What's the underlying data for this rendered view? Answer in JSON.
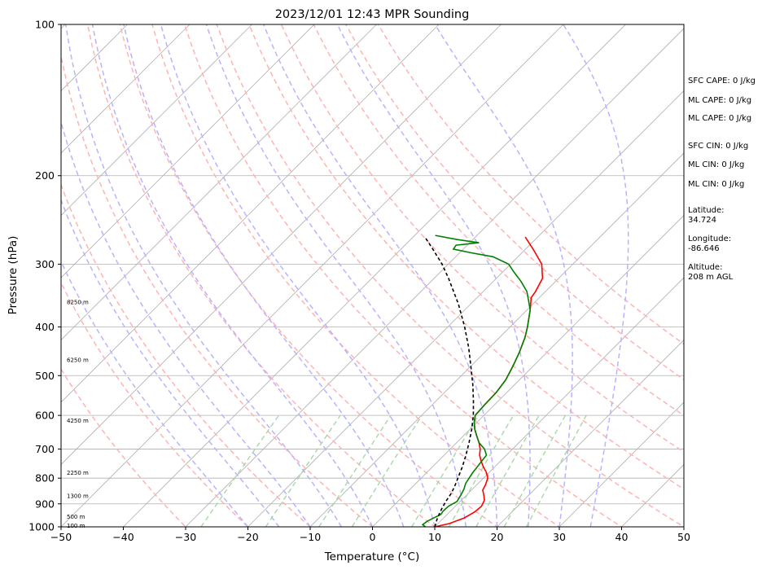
{
  "chart_data": {
    "type": "line",
    "title": "2023/12/01 12:43 MPR Sounding",
    "xlabel": "Temperature (°C)",
    "ylabel": "Pressure (hPa)",
    "xlim": [
      -50,
      50
    ],
    "ylim": [
      1000,
      100
    ],
    "y_scale": "log",
    "x_ticks": [
      "−50",
      "−40",
      "−30",
      "−20",
      "−10",
      "0",
      "10",
      "20",
      "30",
      "40",
      "50"
    ],
    "y_ticks": [
      {
        "p": 100,
        "label": "100"
      },
      {
        "p": 200,
        "label": "200"
      },
      {
        "p": 300,
        "label": "300"
      },
      {
        "p": 400,
        "label": "400"
      },
      {
        "p": 500,
        "label": "500"
      },
      {
        "p": 600,
        "label": "600"
      },
      {
        "p": 700,
        "label": "700"
      },
      {
        "p": 800,
        "label": "800"
      },
      {
        "p": 900,
        "label": "900"
      },
      {
        "p": 1000,
        "label": "1000"
      }
    ],
    "height_labels": [
      {
        "p": 995,
        "label": "100 m"
      },
      {
        "p": 955,
        "label": "500 m"
      },
      {
        "p": 868,
        "label": "1300 m"
      },
      {
        "p": 780,
        "label": "2250 m"
      },
      {
        "p": 615,
        "label": "4250 m"
      },
      {
        "p": 465,
        "label": "6250 m"
      },
      {
        "p": 357,
        "label": "8250 m"
      }
    ],
    "skew": 45,
    "series": [
      {
        "key": "temperature",
        "color": "#ff0000",
        "points": [
          [
            1000,
            10
          ],
          [
            985,
            11.8
          ],
          [
            960,
            13.3
          ],
          [
            935,
            14.0
          ],
          [
            910,
            14.2
          ],
          [
            885,
            13.7
          ],
          [
            865,
            12.8
          ],
          [
            845,
            11.8
          ],
          [
            825,
            11.4
          ],
          [
            800,
            10.7
          ],
          [
            780,
            9.6
          ],
          [
            760,
            8.2
          ],
          [
            740,
            6.9
          ],
          [
            720,
            5.7
          ],
          [
            700,
            4.8
          ],
          [
            680,
            3.6
          ],
          [
            660,
            2.2
          ],
          [
            640,
            0.8
          ],
          [
            620,
            -0.4
          ],
          [
            600,
            -1.4
          ],
          [
            570,
            -1.6
          ],
          [
            540,
            -1.7
          ],
          [
            510,
            -2.2
          ],
          [
            480,
            -3.2
          ],
          [
            450,
            -4.4
          ],
          [
            420,
            -5.9
          ],
          [
            400,
            -7.2
          ],
          [
            370,
            -9.5
          ],
          [
            350,
            -11.3
          ],
          [
            340,
            -11.6
          ],
          [
            320,
            -12.6
          ],
          [
            300,
            -15.0
          ],
          [
            280,
            -18.8
          ],
          [
            265,
            -22.0
          ]
        ]
      },
      {
        "key": "dewpoint",
        "color": "#008000",
        "points": [
          [
            1000,
            8.5
          ],
          [
            990,
            7.7
          ],
          [
            975,
            7.9
          ],
          [
            960,
            8.4
          ],
          [
            945,
            9.0
          ],
          [
            930,
            8.8
          ],
          [
            910,
            8.9
          ],
          [
            890,
            9.5
          ],
          [
            860,
            9.0
          ],
          [
            840,
            8.6
          ],
          [
            820,
            8.0
          ],
          [
            800,
            7.7
          ],
          [
            780,
            7.4
          ],
          [
            760,
            7.2
          ],
          [
            740,
            7.0
          ],
          [
            720,
            6.8
          ],
          [
            700,
            5.5
          ],
          [
            680,
            3.6
          ],
          [
            660,
            2.2
          ],
          [
            640,
            0.8
          ],
          [
            620,
            -0.4
          ],
          [
            600,
            -1.4
          ],
          [
            570,
            -1.6
          ],
          [
            540,
            -1.7
          ],
          [
            510,
            -2.2
          ],
          [
            480,
            -3.2
          ],
          [
            450,
            -4.4
          ],
          [
            420,
            -5.9
          ],
          [
            400,
            -7.2
          ],
          [
            370,
            -9.5
          ],
          [
            355,
            -11.2
          ],
          [
            340,
            -13.0
          ],
          [
            325,
            -15.5
          ],
          [
            310,
            -18.4
          ],
          [
            300,
            -20.3
          ],
          [
            290,
            -24.0
          ],
          [
            285,
            -28.0
          ],
          [
            280,
            -31.6
          ],
          [
            275,
            -31.8
          ],
          [
            272,
            -28.5
          ],
          [
            268,
            -32.5
          ],
          [
            263,
            -36.7
          ]
        ]
      },
      {
        "key": "parcel",
        "color": "#000000",
        "dashed": true,
        "points": [
          [
            1000,
            10
          ],
          [
            960,
            9.0
          ],
          [
            920,
            8.2
          ],
          [
            890,
            7.7
          ],
          [
            860,
            7.3
          ],
          [
            835,
            6.8
          ],
          [
            815,
            6.3
          ],
          [
            800,
            5.9
          ],
          [
            760,
            4.8
          ],
          [
            720,
            3.5
          ],
          [
            680,
            2.0
          ],
          [
            640,
            0.3
          ],
          [
            600,
            -1.7
          ],
          [
            560,
            -4.1
          ],
          [
            520,
            -6.8
          ],
          [
            480,
            -9.9
          ],
          [
            440,
            -13.3
          ],
          [
            400,
            -17.3
          ],
          [
            360,
            -22.0
          ],
          [
            320,
            -27.7
          ],
          [
            300,
            -31.0
          ],
          [
            280,
            -34.9
          ],
          [
            265,
            -38.1
          ]
        ]
      }
    ],
    "dry_adiabats_C": [
      -30,
      -20,
      -10,
      0,
      10,
      20,
      30,
      40,
      50,
      60,
      70,
      80,
      90,
      100
    ],
    "moist_adiabats_C": [
      -20,
      -15,
      -10,
      -5,
      0,
      5,
      10,
      15,
      20,
      25,
      30,
      35
    ],
    "mixing_ratios_gkg": [
      0.4,
      1,
      2,
      3,
      6,
      9,
      12,
      16,
      20
    ],
    "annotations": [
      "SFC CAPE: 0 J/kg",
      "ML CAPE: 0 J/kg",
      "ML CAPE: 0 J/kg",
      "SFC CIN: 0 J/kg",
      "ML CIN: 0 J/kg",
      "ML CIN: 0 J/kg",
      "Latitude:",
      "34.724",
      "Longitude:",
      "-86.646",
      "Altitude:",
      "208 m AGL"
    ],
    "colors": {
      "isotherm": "#b0b0b0",
      "isobar": "#b0b0b0",
      "dry_adiabat": "#ffb3b3",
      "moist_adiabat": "#b8b3ff",
      "mixing_ratio": "#a8d8a8"
    }
  }
}
